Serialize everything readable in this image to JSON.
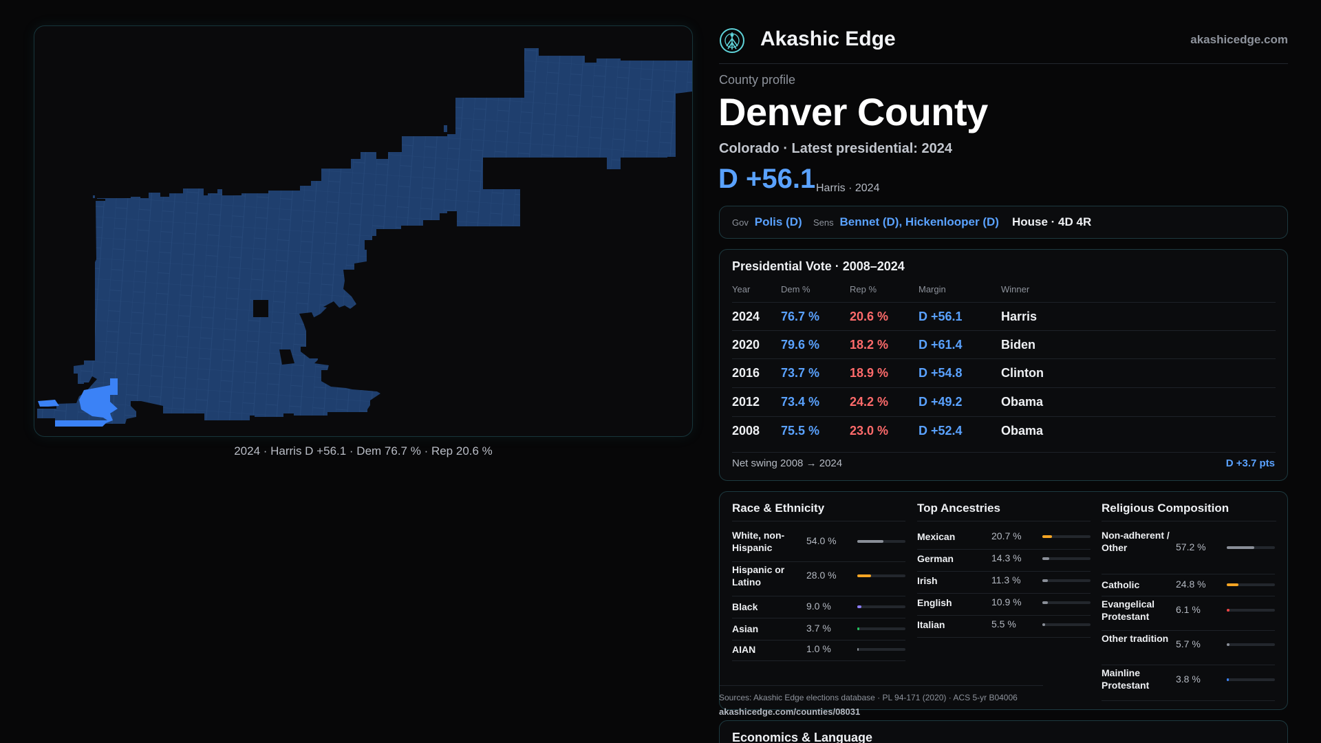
{
  "map": {
    "caption": "2024 · Harris D +56.1 · Dem 76.7 % · Rep 20.6 %",
    "fill_main": "#1f3f6e",
    "fill_highlight": "#3b82f6",
    "tract_lines": "#2f5486"
  },
  "brand": {
    "name": "Akashic Edge",
    "url": "akashicedge.com",
    "logo_icon": "atom-tree-icon"
  },
  "profile": {
    "kicker": "County profile",
    "name": "Denver County",
    "subtitle": "Colorado · Latest presidential: 2024",
    "margin": "D +56.1",
    "margin_note": "Harris · 2024"
  },
  "officials": {
    "gov_label": "Gov",
    "gov": "Polis (D)",
    "sens_label": "Sens",
    "sens": "Bennet (D), Hickenlooper (D)",
    "house": "House · 4D 4R"
  },
  "votes": {
    "title": "Presidential Vote · 2008–2024",
    "headers": [
      "Year",
      "Dem %",
      "Rep %",
      "Margin",
      "Winner"
    ],
    "rows": [
      {
        "year": "2024",
        "dem": "76.7 %",
        "rep": "20.6 %",
        "margin": "D +56.1",
        "winner": "Harris"
      },
      {
        "year": "2020",
        "dem": "79.6 %",
        "rep": "18.2 %",
        "margin": "D +61.4",
        "winner": "Biden"
      },
      {
        "year": "2016",
        "dem": "73.7 %",
        "rep": "18.9 %",
        "margin": "D +54.8",
        "winner": "Clinton"
      },
      {
        "year": "2012",
        "dem": "73.4 %",
        "rep": "24.2 %",
        "margin": "D +49.2",
        "winner": "Obama"
      },
      {
        "year": "2008",
        "dem": "75.5 %",
        "rep": "23.0 %",
        "margin": "D +52.4",
        "winner": "Obama"
      }
    ],
    "swing_label": "Net swing 2008 → 2024",
    "swing_value": "D +3.7 pts"
  },
  "race": {
    "title": "Race & Ethnicity",
    "items": [
      {
        "label": "White, non-Hispanic",
        "value": "54.0 %",
        "pct": 54.0,
        "color": "#8a8f98"
      },
      {
        "label": "Hispanic or Latino",
        "value": "28.0 %",
        "pct": 28.0,
        "color": "#f5a524"
      },
      {
        "label": "Black",
        "value": "9.0 %",
        "pct": 9.0,
        "color": "#8b7cf6"
      },
      {
        "label": "Asian",
        "value": "3.7 %",
        "pct": 3.7,
        "color": "#22c55e"
      },
      {
        "label": "AIAN",
        "value": "1.0 %",
        "pct": 1.0,
        "color": "#8a8f98"
      }
    ]
  },
  "ancestry": {
    "title": "Top Ancestries",
    "items": [
      {
        "label": "Mexican",
        "value": "20.7 %",
        "pct": 20.7,
        "color": "#f5a524"
      },
      {
        "label": "German",
        "value": "14.3 %",
        "pct": 14.3,
        "color": "#8a8f98"
      },
      {
        "label": "Irish",
        "value": "11.3 %",
        "pct": 11.3,
        "color": "#8a8f98"
      },
      {
        "label": "English",
        "value": "10.9 %",
        "pct": 10.9,
        "color": "#8a8f98"
      },
      {
        "label": "Italian",
        "value": "5.5 %",
        "pct": 5.5,
        "color": "#8a8f98"
      }
    ]
  },
  "religion": {
    "title": "Religious Composition",
    "items": [
      {
        "label": "Non-adherent / Other",
        "value": "57.2 %",
        "pct": 57.2,
        "color": "#8a8f98"
      },
      {
        "label": "Catholic",
        "value": "24.8 %",
        "pct": 24.8,
        "color": "#f5a524"
      },
      {
        "label": "Evangelical Protestant",
        "value": "6.1 %",
        "pct": 6.1,
        "color": "#ef4444"
      },
      {
        "label": "Other tradition",
        "value": "5.7 %",
        "pct": 5.7,
        "color": "#8a8f98"
      },
      {
        "label": "Mainline Protestant",
        "value": "3.8 %",
        "pct": 3.8,
        "color": "#3b82f6"
      }
    ]
  },
  "sources": {
    "text": "Sources: Akashic Edge elections database · PL 94-171 (2020) · ACS 5-yr B04006",
    "url": "akashicedge.com/counties/08031"
  },
  "economics": {
    "title": "Economics & Language"
  }
}
